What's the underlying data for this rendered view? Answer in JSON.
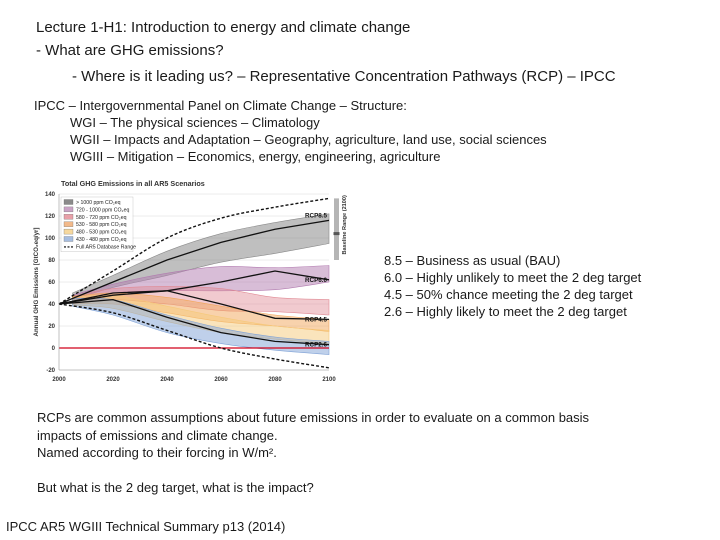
{
  "slide": {
    "lecture_label": "Lecture 1-H1",
    "lecture_title": ": Introduction to energy and climate change",
    "bullet1": "What are GHG emissions?",
    "bullet2": "Where is it leading us? – Representative Concentration Pathways (RCP) – IPCC",
    "ipcc_line": "IPCC – Intergovernmental Panel on Climate Change – Structure:",
    "wg_lines": [
      "WGI – The physical sciences – Climatology",
      "WGII – Impacts and Adaptation – Geography, agriculture, land use, social sciences",
      "WGIII – Mitigation – Economics, energy, engineering, agriculture"
    ],
    "rcp_notes": [
      "8.5 – Business as usual (BAU)",
      "6.0 – Highly unlikely to meet the 2 deg target",
      "4.5 – 50% chance meeting the 2 deg target",
      "2.6 – Highly likely to meet the 2 deg target"
    ],
    "rcp_explain": [
      "RCPs are common assumptions about future emissions in order to evaluate on a common basis",
      "impacts of emissions and climate change.",
      "Named according to their forcing in W/m²."
    ],
    "question": "But what is the 2 deg target, what is the impact?",
    "source": "IPCC AR5 WGIII Technical Summary p13 (2014)"
  },
  "chart_data": {
    "type": "area",
    "title": "Total GHG Emissions in all AR5 Scenarios",
    "ylabel": "Annual GHG Emissions [GtCO₂eq/yr]",
    "side_label": "Baseline Range (2100)",
    "xlim": [
      2000,
      2100
    ],
    "ylim": [
      -20,
      140
    ],
    "x_ticks": [
      2000,
      2020,
      2040,
      2060,
      2080,
      2100
    ],
    "y_ticks": [
      -20,
      0,
      20,
      40,
      60,
      80,
      100,
      120,
      140
    ],
    "legend": [
      {
        "label": "> 1000   ppm CO₂eq",
        "color": "#8a8a8a"
      },
      {
        "label": "720 - 1000   ppm CO₂eq",
        "color": "#c9a3c5"
      },
      {
        "label": "580 - 720   ppm CO₂eq",
        "color": "#e8a0a8"
      },
      {
        "label": "530 - 580   ppm CO₂eq",
        "color": "#f2b98a"
      },
      {
        "label": "480 - 530   ppm CO₂eq",
        "color": "#f6d89e"
      },
      {
        "label": "430 - 480   ppm CO₂eq",
        "color": "#a6bde0"
      },
      {
        "label": "Full AR5 Database Range",
        "color": "#000000"
      }
    ],
    "bands": [
      {
        "name": "> 1000 ppm CO₂eq",
        "color": "#8a8a8a",
        "opacity": 0.55,
        "x": [
          2005,
          2020,
          2040,
          2060,
          2080,
          2100
        ],
        "lower": [
          44,
          55,
          66,
          78,
          86,
          95
        ],
        "upper": [
          50,
          66,
          88,
          104,
          114,
          122
        ]
      },
      {
        "name": "720 - 1000 ppm CO₂eq",
        "color": "#b27bb0",
        "opacity": 0.5,
        "x": [
          2005,
          2020,
          2040,
          2060,
          2080,
          2100
        ],
        "lower": [
          42,
          50,
          52,
          52,
          53,
          60
        ],
        "upper": [
          48,
          58,
          68,
          74,
          73,
          75
        ]
      },
      {
        "name": "580 - 720 ppm CO₂eq",
        "color": "#e08a94",
        "opacity": 0.45,
        "x": [
          2005,
          2020,
          2040,
          2060,
          2080,
          2100
        ],
        "lower": [
          40,
          44,
          40,
          34,
          33,
          30
        ],
        "upper": [
          47,
          54,
          56,
          54,
          46,
          44
        ]
      },
      {
        "name": "530 - 580 ppm CO₂eq",
        "color": "#f2a65a",
        "opacity": 0.5,
        "x": [
          2005,
          2020,
          2040,
          2060,
          2080,
          2100
        ],
        "lower": [
          40,
          40,
          32,
          24,
          20,
          15
        ],
        "upper": [
          47,
          50,
          46,
          38,
          30,
          26
        ]
      },
      {
        "name": "480 - 530 ppm CO₂eq",
        "color": "#f6c97a",
        "opacity": 0.5,
        "x": [
          2005,
          2020,
          2040,
          2060,
          2080,
          2100
        ],
        "lower": [
          39,
          36,
          24,
          14,
          8,
          4
        ],
        "upper": [
          46,
          48,
          38,
          28,
          20,
          16
        ]
      },
      {
        "name": "430 - 480 ppm CO₂eq",
        "color": "#7fa2d6",
        "opacity": 0.5,
        "x": [
          2005,
          2020,
          2040,
          2060,
          2080,
          2100
        ],
        "lower": [
          38,
          30,
          14,
          4,
          -2,
          -6
        ],
        "upper": [
          45,
          44,
          30,
          18,
          10,
          6
        ]
      }
    ],
    "envelope": {
      "name": "Full AR5 Database Range",
      "x": [
        2000,
        2020,
        2040,
        2060,
        2080,
        2100
      ],
      "upper": [
        40,
        70,
        100,
        118,
        128,
        136
      ],
      "lower": [
        40,
        32,
        16,
        0,
        -10,
        -18
      ]
    },
    "rcp_lines": [
      {
        "name": "RCP8.5",
        "x": [
          2000,
          2020,
          2040,
          2060,
          2080,
          2100
        ],
        "y": [
          40,
          60,
          80,
          96,
          108,
          116
        ]
      },
      {
        "name": "RCP6.0",
        "x": [
          2000,
          2020,
          2040,
          2060,
          2080,
          2100
        ],
        "y": [
          40,
          48,
          52,
          60,
          70,
          62
        ]
      },
      {
        "name": "RCP4.5",
        "x": [
          2000,
          2020,
          2040,
          2060,
          2080,
          2100
        ],
        "y": [
          40,
          50,
          52,
          40,
          27,
          26
        ]
      },
      {
        "name": "RCP2.6",
        "x": [
          2000,
          2020,
          2040,
          2060,
          2080,
          2100
        ],
        "y": [
          40,
          44,
          28,
          14,
          6,
          3
        ]
      }
    ],
    "baseline_range_2100": [
      80,
      136
    ],
    "baseline_median_2100": 104
  }
}
